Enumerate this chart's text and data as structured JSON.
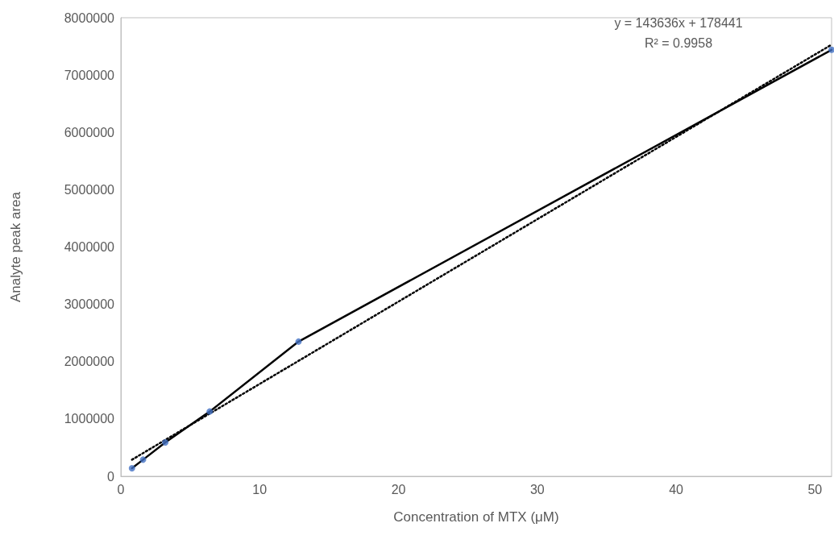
{
  "chart_data": {
    "type": "line",
    "xlabel": "Concentration of MTX (μM)",
    "ylabel": "Analyte peak area",
    "xlim": [
      0,
      51.2
    ],
    "xticks": [
      0,
      10,
      20,
      30,
      40,
      50
    ],
    "ylim": [
      0,
      8000000
    ],
    "yticks": [
      0,
      1000000,
      2000000,
      3000000,
      4000000,
      5000000,
      6000000,
      7000000,
      8000000
    ],
    "grid": false,
    "annotations": [
      "y = 143636x + 178441",
      "R² = 0.9958"
    ],
    "series": [
      {
        "color": "#000000",
        "marker": "none",
        "line_style": "solid",
        "x": [
          0.8,
          1.6,
          3.2,
          6.4,
          12.8,
          51.2
        ],
        "values": [
          140000,
          290000,
          590000,
          1130000,
          2350000,
          7440000
        ]
      },
      {
        "type": "scatter",
        "color": "#4472c4",
        "marker": "circle",
        "x": [
          0.8,
          1.6,
          3.2,
          6.4,
          12.8,
          51.2
        ],
        "values": [
          140000,
          290000,
          590000,
          1130000,
          2350000,
          7440000
        ]
      },
      {
        "color": "#000000",
        "marker": "none",
        "line_style": "dotted",
        "x": [
          0.8,
          51.2
        ],
        "values": [
          290000,
          7530000
        ]
      }
    ]
  }
}
